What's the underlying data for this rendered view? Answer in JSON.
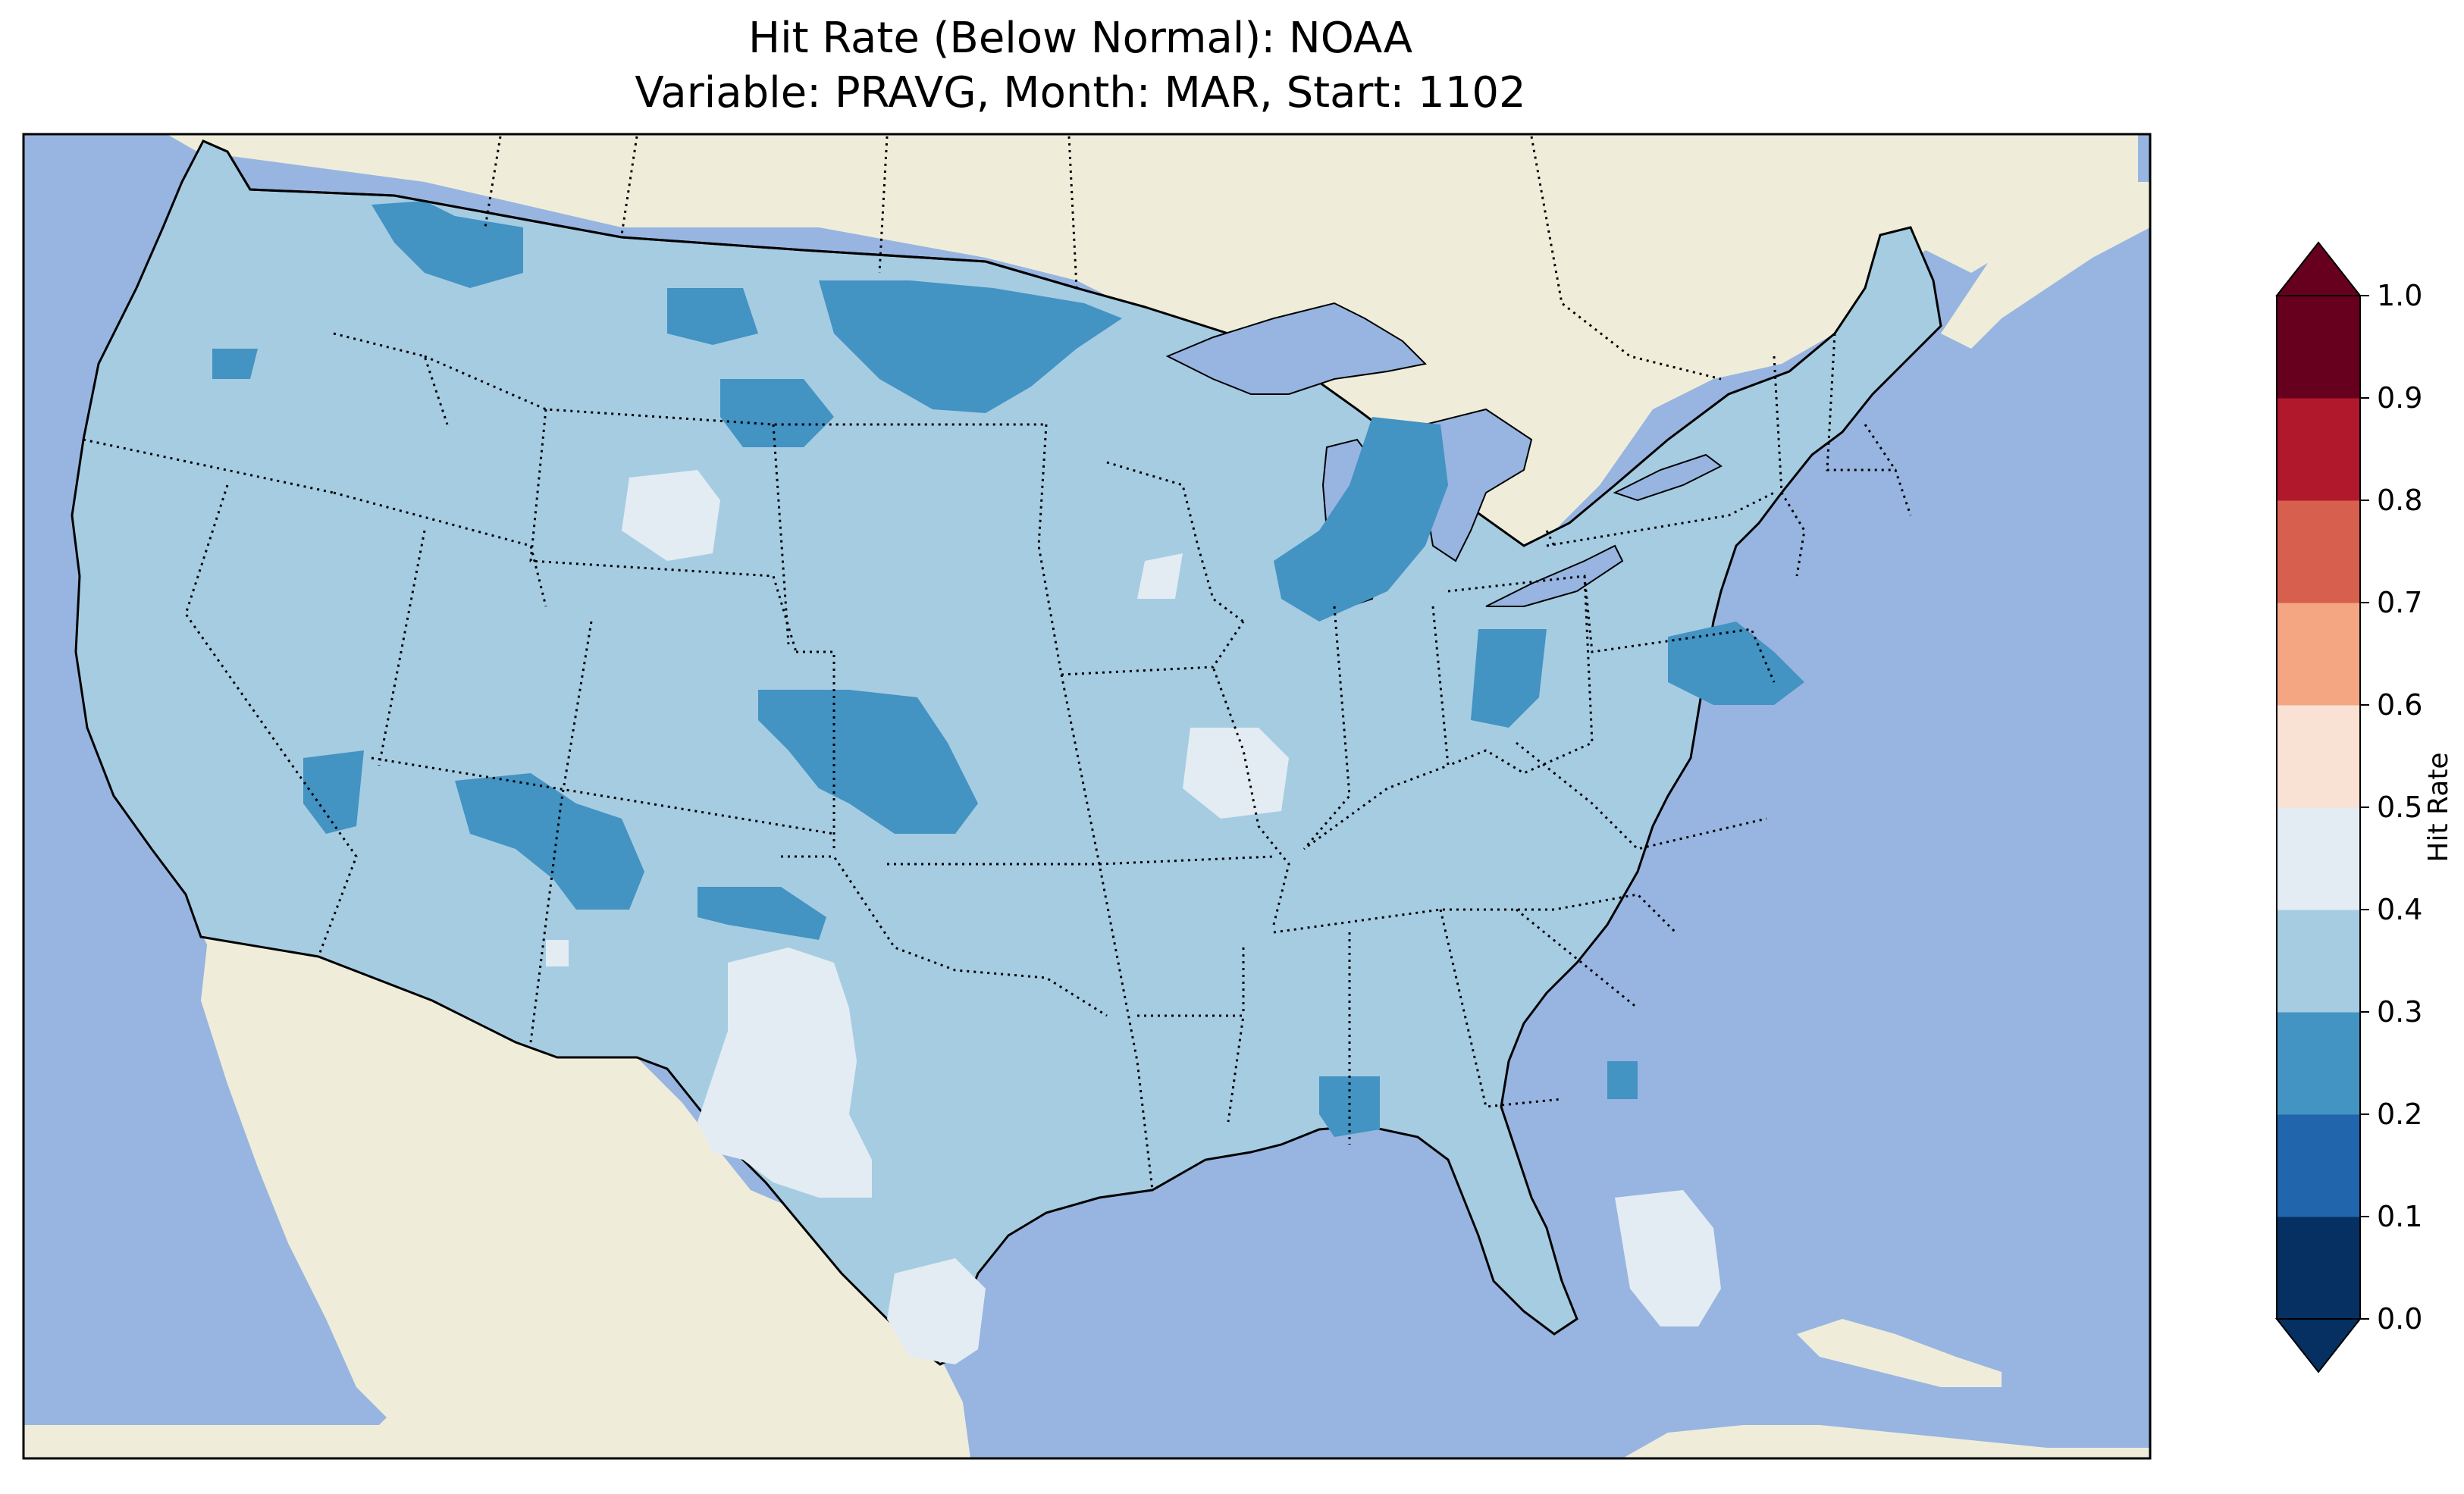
{
  "title": {
    "line1": "Hit Rate (Below Normal): NOAA",
    "line2": "Variable: PRAVG, Month: MAR, Start: 1102"
  },
  "colors": {
    "ocean": "#97b5e0",
    "land": "#efedda",
    "lake": "#97b5e0"
  },
  "colorbar": {
    "label": "Hit Rate",
    "extend": "both",
    "levels": [
      0.0,
      0.1,
      0.2,
      0.3,
      0.4,
      0.5,
      0.6,
      0.7,
      0.8,
      0.9,
      1.0
    ],
    "tick_labels": [
      "0.0",
      "0.1",
      "0.2",
      "0.3",
      "0.4",
      "0.5",
      "0.6",
      "0.7",
      "0.8",
      "0.9",
      "1.0"
    ],
    "colors": [
      "#053061",
      "#2166ac",
      "#4393c3",
      "#a6cce2",
      "#e3ecf3",
      "#f9e1d4",
      "#f4a582",
      "#d6604d",
      "#b2182b",
      "#67001f"
    ],
    "under_color": "#053061",
    "over_color": "#67001f"
  },
  "map_data": {
    "region": "Contiguous United States (CONUS)",
    "dominant_class": "0.3–0.4",
    "regions": [
      {
        "area": "Most of CONUS",
        "class": "0.3–0.4"
      },
      {
        "area": "Northern Idaho / NW Montana",
        "class": "0.2–0.3"
      },
      {
        "area": "North Dakota / NE Montana",
        "class": "0.2–0.3"
      },
      {
        "area": "Michigan (lower) / N Indiana",
        "class": "0.2–0.3"
      },
      {
        "area": "Maryland / Delaware",
        "class": "0.2–0.3"
      },
      {
        "area": "Colorado / Kansas border",
        "class": "0.2–0.3"
      },
      {
        "area": "Central Wyoming",
        "class": "0.4–0.5"
      },
      {
        "area": "West Texas",
        "class": "0.4–0.5"
      },
      {
        "area": "South Texas",
        "class": "0.4–0.5"
      },
      {
        "area": "South Florida",
        "class": "0.4–0.5"
      },
      {
        "area": "Central Missouri / Illinois",
        "class": "0.4–0.5"
      }
    ]
  }
}
